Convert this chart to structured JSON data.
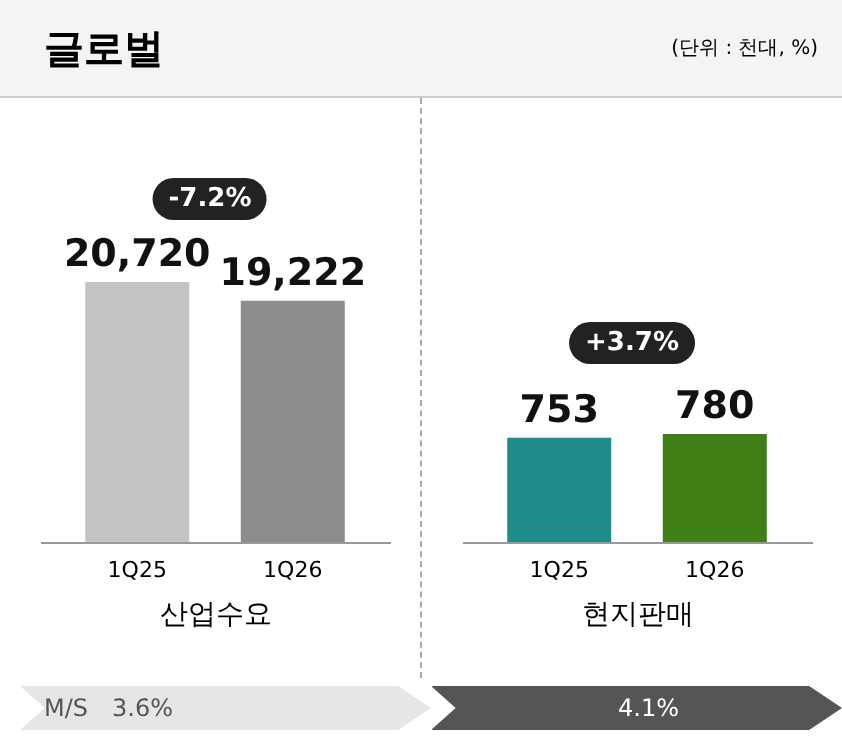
{
  "chart_data": [
    {
      "type": "other",
      "title": "글로벌",
      "subtitle": "(단위 : 천대, %)"
    },
    {
      "type": "bar",
      "categories": [
        "1Q25",
        "1Q26"
      ],
      "values": [
        20720,
        19222
      ],
      "value_labels": [
        "20,720",
        "19,222"
      ],
      "colors": [
        "#c4c4c4",
        "#8c8c8c"
      ],
      "xlabel": "산업수요",
      "tick_labels": "x",
      "annotations": [
        "-7.2%",
        "M/S",
        "3.6%"
      ]
    },
    {
      "type": "bar",
      "categories": [
        "1Q25",
        "1Q26"
      ],
      "values": [
        753,
        780
      ],
      "value_labels": [
        "753",
        "780"
      ],
      "colors": [
        "#1f8c8c",
        "#3f7f16"
      ],
      "xlabel": "현지판매",
      "tick_labels": "x",
      "annotations": [
        "+3.7%",
        "4.1%"
      ]
    }
  ]
}
